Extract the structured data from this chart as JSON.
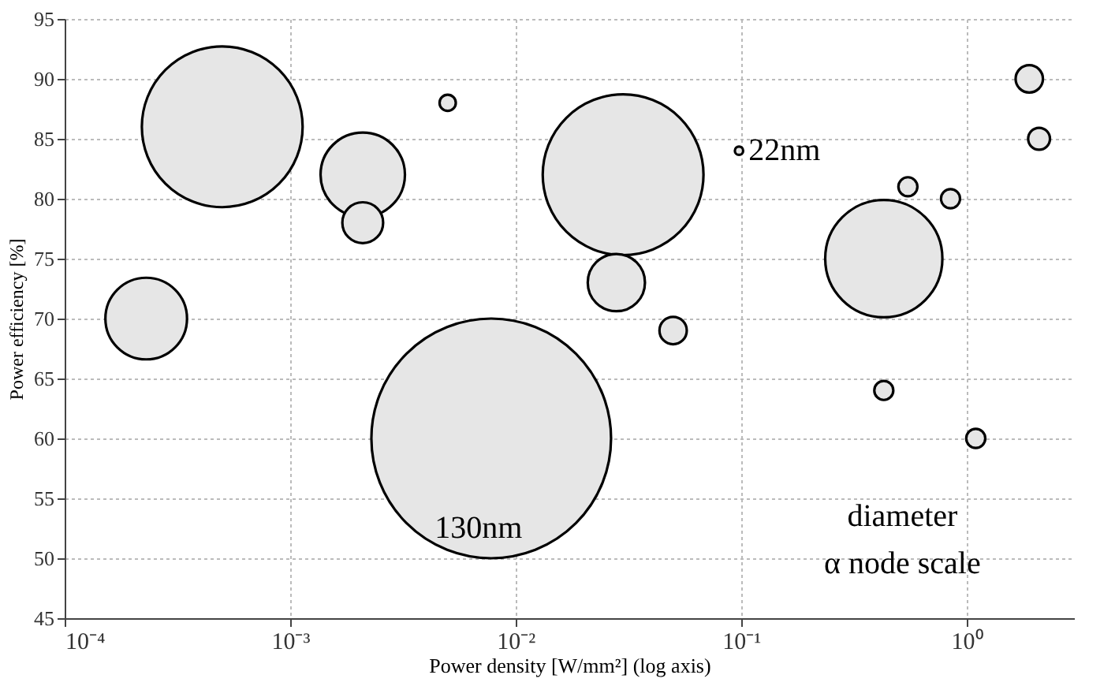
{
  "chart_data": {
    "type": "bubble",
    "xlabel": "Power density [W/mm²] (log axis)",
    "ylabel": "Power efficiency [%]",
    "x": [
      0.0005,
      0.0021,
      0.0021,
      0.005,
      0.00023,
      0.0078,
      0.03,
      0.028,
      0.098,
      0.05,
      0.43,
      0.55,
      0.85,
      1.9,
      2.1,
      0.43,
      1.1
    ],
    "series": [
      {
        "color": "#e6e6e6",
        "values": [
          86,
          82,
          78,
          88,
          70,
          60,
          82,
          73,
          84,
          69,
          75,
          81,
          80,
          90,
          85,
          64,
          60
        ],
        "sizes": [
          0.45,
          0.124,
          0.029,
          0.0046,
          0.116,
          1,
          0.45,
          0.057,
          0.0012,
          0.013,
          0.239,
          0.0063,
          0.0063,
          0.013,
          0.0083,
          0.0063,
          0.0063
        ]
      }
    ],
    "log": "x",
    "xlim": [
      0.0001,
      3
    ],
    "ylim": [
      45,
      95
    ],
    "xticks": [
      {
        "value": 0.0001,
        "label": "10⁻⁴"
      },
      {
        "value": 0.001,
        "label": "10⁻³"
      },
      {
        "value": 0.01,
        "label": "10⁻²"
      },
      {
        "value": 0.1,
        "label": "10⁻¹"
      },
      {
        "value": 1,
        "label": "10⁰"
      }
    ],
    "yticks": [
      45,
      50,
      55,
      60,
      65,
      70,
      75,
      80,
      85,
      90,
      95
    ],
    "grid": true,
    "legend": false,
    "annotations": [
      {
        "text": "22nm",
        "x": 0.098,
        "y": 84
      },
      "130nm",
      "diameter\nα node scale"
    ]
  }
}
